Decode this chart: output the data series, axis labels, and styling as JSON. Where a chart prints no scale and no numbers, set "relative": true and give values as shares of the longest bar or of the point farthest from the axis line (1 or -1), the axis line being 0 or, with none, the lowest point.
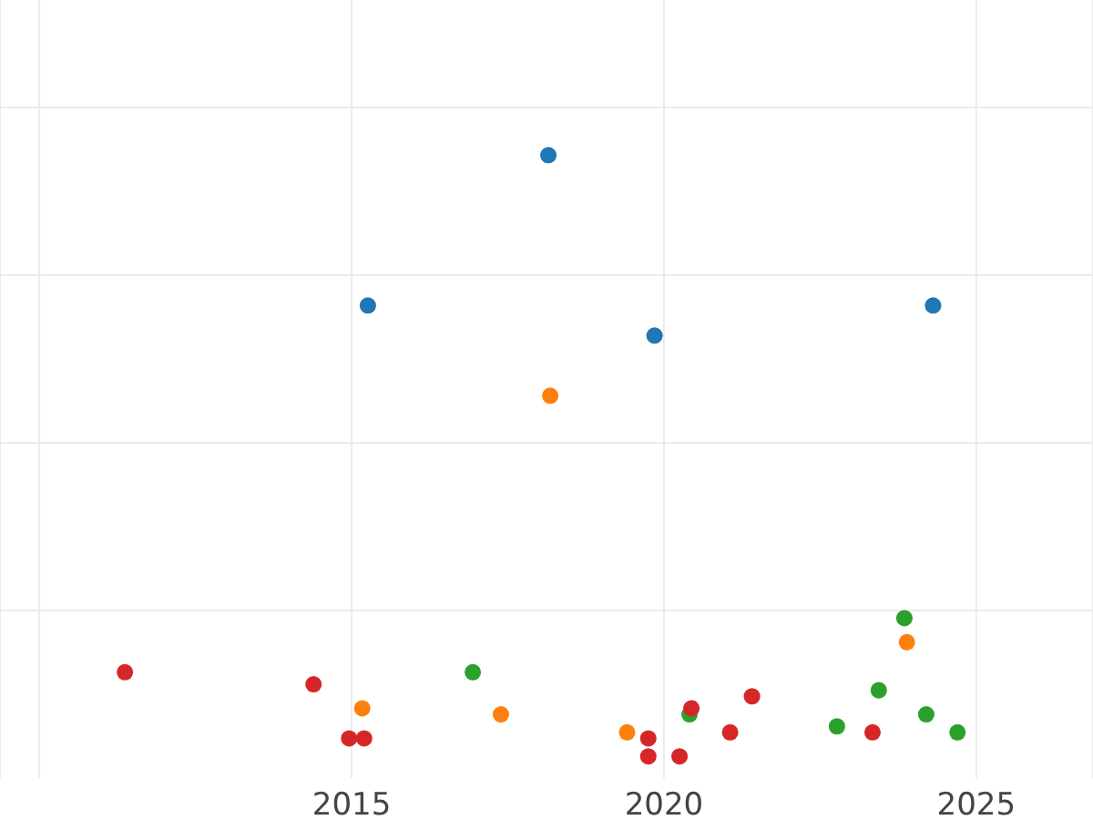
{
  "chart_data": {
    "type": "scatter",
    "relative": true,
    "grid": true,
    "marker": "circle",
    "xlim": [
      2009.37,
      2026.87
    ],
    "xticks": [
      {
        "value": 2010,
        "label": null
      },
      2015,
      2020,
      2025
    ],
    "series": [
      {
        "color": "#1f77b4",
        "x": [
          2015.26,
          2018.15,
          2019.85,
          2024.31
        ],
        "values": [
          0.75,
          1,
          0.7,
          0.75
        ]
      },
      {
        "color": "#ff7f0e",
        "x": [
          2018.18,
          2015.17,
          2017.39,
          2019.41,
          2023.89
        ],
        "values": [
          0.6,
          0.08,
          0.07,
          0.04,
          0.19
        ]
      },
      {
        "color": "#2ca02c",
        "x": [
          2016.94,
          2020.41,
          2022.77,
          2023.44,
          2023.85,
          2024.2,
          2024.7
        ],
        "values": [
          0.14,
          0.07,
          0.05,
          0.11,
          0.23,
          0.07,
          0.04
        ]
      },
      {
        "color": "#d62728",
        "x": [
          2011.37,
          2014.39,
          2014.96,
          2015.2,
          2019.75,
          2019.75,
          2020.25,
          2020.44,
          2021.06,
          2021.41,
          2023.34
        ],
        "values": [
          0.14,
          0.12,
          0.03,
          0.03,
          0.03,
          0,
          0,
          0.08,
          0.04,
          0.1,
          0.04
        ]
      }
    ]
  }
}
